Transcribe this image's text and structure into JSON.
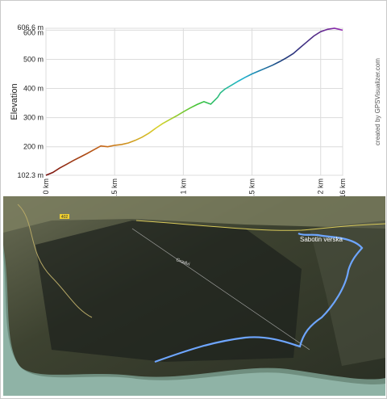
{
  "chart_data": {
    "type": "line",
    "ylabel": "Elevation",
    "credit": "created by GPSVisualizer.com",
    "ylim": [
      102.3,
      606.6
    ],
    "xlim": [
      0,
      2.16
    ],
    "y_ticks": [
      {
        "value": 606.6,
        "label": "606.6 m"
      },
      {
        "value": 600,
        "label": "600 m"
      },
      {
        "value": 500,
        "label": "500 m"
      },
      {
        "value": 400,
        "label": "400 m"
      },
      {
        "value": 300,
        "label": "300 m"
      },
      {
        "value": 200,
        "label": "200 m"
      },
      {
        "value": 102.3,
        "label": "102.3 m"
      }
    ],
    "x_ticks": [
      {
        "value": 0,
        "label": "0 km"
      },
      {
        "value": 0.5,
        "label": "0.5 km"
      },
      {
        "value": 1,
        "label": "1 km"
      },
      {
        "value": 1.5,
        "label": "1.5 km"
      },
      {
        "value": 2,
        "label": "2 km"
      },
      {
        "value": 2.16,
        "label": "2.16 km"
      }
    ],
    "grid": true,
    "x": [
      0,
      0.05,
      0.1,
      0.15,
      0.2,
      0.25,
      0.3,
      0.35,
      0.4,
      0.45,
      0.5,
      0.55,
      0.6,
      0.65,
      0.7,
      0.75,
      0.8,
      0.85,
      0.9,
      0.95,
      1.0,
      1.05,
      1.1,
      1.15,
      1.2,
      1.25,
      1.27,
      1.3,
      1.35,
      1.4,
      1.45,
      1.5,
      1.55,
      1.6,
      1.65,
      1.7,
      1.75,
      1.8,
      1.85,
      1.9,
      1.95,
      2.0,
      2.05,
      2.1,
      2.16
    ],
    "y": [
      102.3,
      112,
      127,
      140,
      153,
      165,
      177,
      190,
      203,
      200,
      205,
      208,
      213,
      222,
      233,
      247,
      264,
      280,
      293,
      306,
      320,
      333,
      345,
      355,
      346,
      370,
      385,
      397,
      411,
      425,
      438,
      450,
      460,
      470,
      480,
      492,
      505,
      520,
      540,
      560,
      580,
      595,
      603,
      606.6,
      600
    ]
  },
  "map": {
    "place_label": "Sabotin verska",
    "road_label": "Gradvi",
    "road_number": "402"
  }
}
